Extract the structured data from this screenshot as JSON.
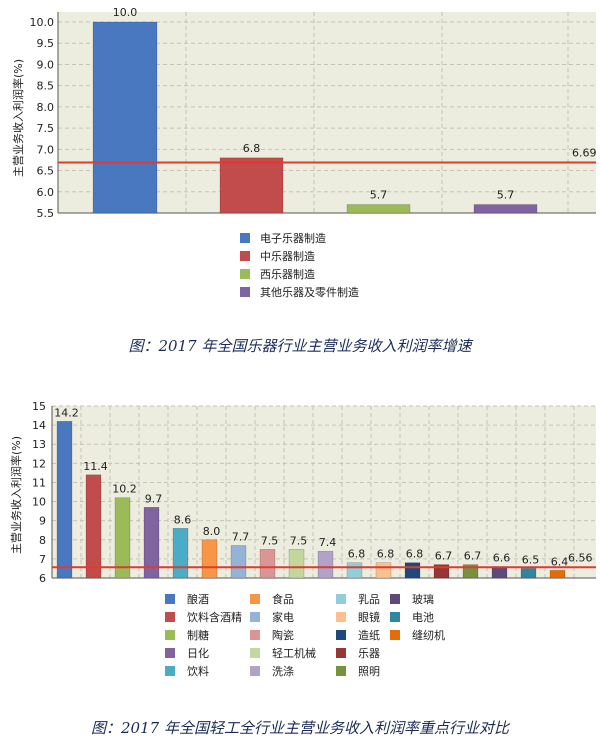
{
  "colors": {
    "plot_bg": "#ededdf",
    "grid": "#c4c4b6",
    "axis": "#555555",
    "reference_line": "#e03a2f",
    "caption": "#1a2a55"
  },
  "chart_data": [
    {
      "type": "bar",
      "title": "",
      "ylabel": "主营业务收入利润率(%)",
      "xlabel": "",
      "ylim": [
        5.5,
        10.0
      ],
      "yticks": [
        "10.0",
        "9.5",
        "9.0",
        "8.5",
        "8.0",
        "7.5",
        "7.0",
        "6.5",
        "6.0",
        "5.5"
      ],
      "grid": true,
      "legend_position": "bottom",
      "series": [
        {
          "name": "电子乐器制造",
          "value": 10.0,
          "label": "10.0",
          "color": "#4a78c0"
        },
        {
          "name": "中乐器制造",
          "value": 6.8,
          "label": "6.8",
          "color": "#c24b4b"
        },
        {
          "name": "西乐器制造",
          "value": 5.7,
          "label": "5.7",
          "color": "#9bbb59"
        },
        {
          "name": "其他乐器及零件制造",
          "value": 5.7,
          "label": "5.7",
          "color": "#8064a2"
        }
      ],
      "reference_line": {
        "value": 6.69,
        "label": "6.69"
      },
      "caption": "图：2017 年全国乐器行业主营业务收入利润率增速"
    },
    {
      "type": "bar",
      "title": "",
      "ylabel": "主营业务收入利润率(%)",
      "xlabel": "",
      "ylim": [
        6,
        15
      ],
      "yticks": [
        "15",
        "14",
        "13",
        "12",
        "11",
        "10",
        "9",
        "8",
        "7",
        "6"
      ],
      "grid": true,
      "legend_position": "bottom",
      "series": [
        {
          "name": "酿酒",
          "value": 14.2,
          "label": "14.2",
          "color": "#4a78c0"
        },
        {
          "name": "饮料含酒精",
          "value": 11.4,
          "label": "11.4",
          "color": "#c24b4b"
        },
        {
          "name": "制糖",
          "value": 10.2,
          "label": "10.2",
          "color": "#9bbb59"
        },
        {
          "name": "日化",
          "value": 9.7,
          "label": "9.7",
          "color": "#8064a2"
        },
        {
          "name": "饮料",
          "value": 8.6,
          "label": "8.6",
          "color": "#4bacc6"
        },
        {
          "name": "食品",
          "value": 8.0,
          "label": "8.0",
          "color": "#f79646"
        },
        {
          "name": "家电",
          "value": 7.7,
          "label": "7.7",
          "color": "#95b3d7"
        },
        {
          "name": "陶瓷",
          "value": 7.5,
          "label": "7.5",
          "color": "#d99694"
        },
        {
          "name": "轻工机械",
          "value": 7.5,
          "label": "7.5",
          "color": "#c3d69b"
        },
        {
          "name": "洗涤",
          "value": 7.4,
          "label": "7.4",
          "color": "#b2a2c7"
        },
        {
          "name": "乳品",
          "value": 6.8,
          "label": "6.8",
          "color": "#92cddc"
        },
        {
          "name": "眼镜",
          "value": 6.8,
          "label": "6.8",
          "color": "#fac08f"
        },
        {
          "name": "造纸",
          "value": 6.8,
          "label": "6.8",
          "color": "#1f497d"
        },
        {
          "name": "乐器",
          "value": 6.7,
          "label": "6.7",
          "color": "#953735"
        },
        {
          "name": "照明",
          "value": 6.7,
          "label": "6.7",
          "color": "#76923c"
        },
        {
          "name": "玻璃",
          "value": 6.6,
          "label": "6.6",
          "color": "#5f497a"
        },
        {
          "name": "电池",
          "value": 6.5,
          "label": "6.5",
          "color": "#31859c"
        },
        {
          "name": "缝纫机",
          "value": 6.4,
          "label": "6.4",
          "color": "#e46c0a"
        }
      ],
      "reference_line": {
        "value": 6.56,
        "label": "6.56"
      },
      "caption": "图：2017 年全国轻工全行业主营业务收入利润率重点行业对比"
    }
  ]
}
